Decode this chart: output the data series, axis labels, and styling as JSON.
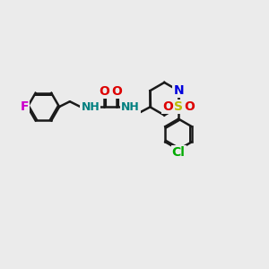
{
  "background_color": "#ebebeb",
  "bond_color": "#1a1a1a",
  "bond_width": 1.8,
  "font_size": 10,
  "colors": {
    "F": "#cc00cc",
    "O": "#dd0000",
    "N": "#0000dd",
    "NH": "#008080",
    "S": "#bbbb00",
    "Cl": "#00aa00",
    "C": "#1a1a1a"
  }
}
